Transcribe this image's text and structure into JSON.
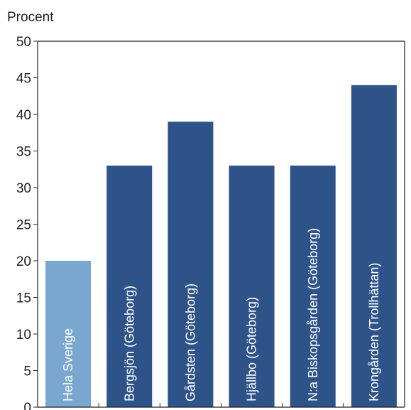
{
  "chart_data": {
    "type": "bar",
    "ylabel": "Procent",
    "ylim": [
      0,
      50
    ],
    "yticks": [
      0,
      5,
      10,
      15,
      20,
      25,
      30,
      35,
      40,
      45,
      50
    ],
    "grid": false,
    "categories": [
      "Hela Sverige",
      "Bergsjön (Göteborg)",
      "Gårdsten (Göteborg)",
      "Hjällbo (Göteborg)",
      "N:a Biskopsgården (Göteborg)",
      "Krongården (Trollhättan)"
    ],
    "values": [
      20,
      33,
      39,
      33,
      33,
      44
    ],
    "colors": [
      "#7aa7cf",
      "#2e5389",
      "#2e5389",
      "#2e5389",
      "#2e5389",
      "#2e5389"
    ],
    "label_placement": "inside-bar-rotated"
  }
}
